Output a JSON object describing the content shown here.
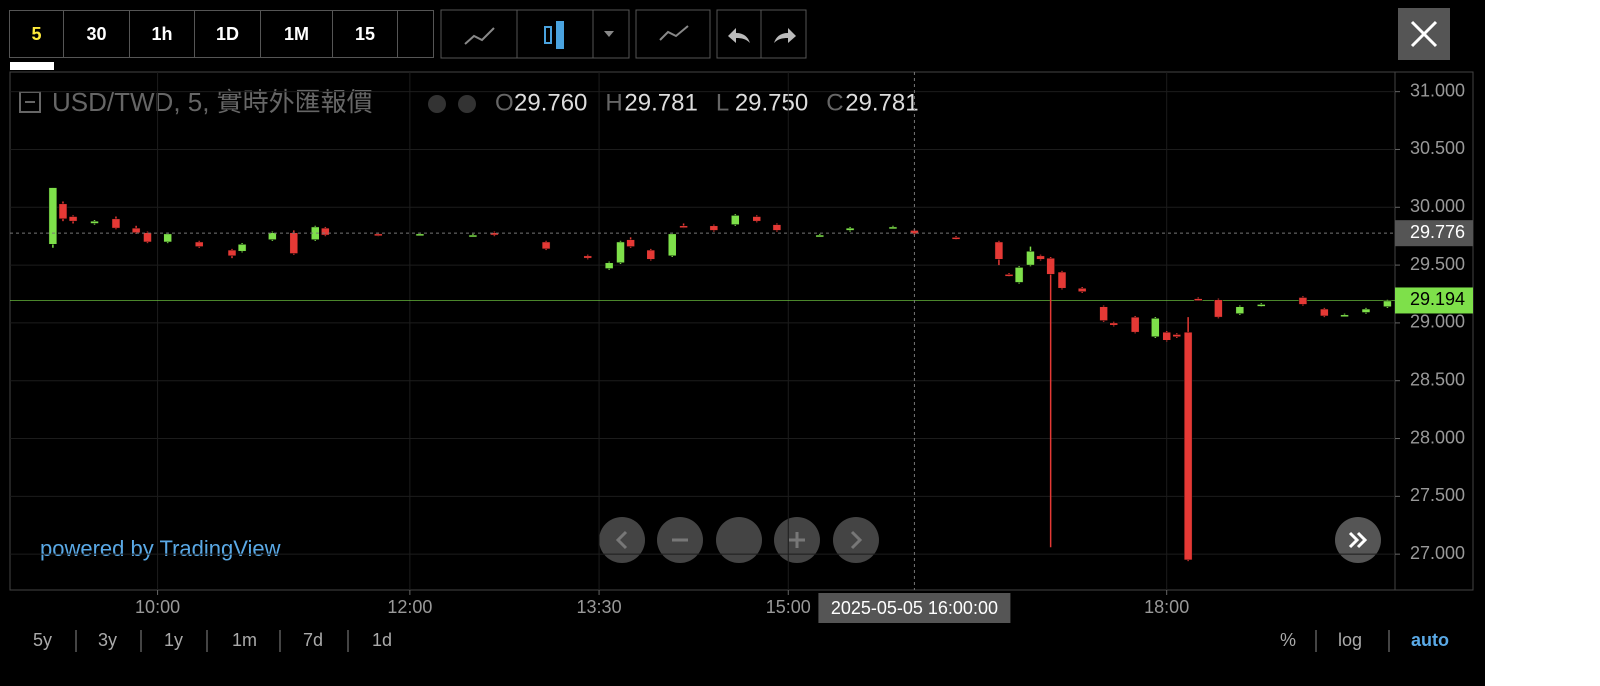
{
  "toolbar": {
    "intervals": [
      "5",
      "30",
      "1h",
      "1D",
      "1M",
      "15"
    ]
  },
  "chart_data": {
    "type": "candlestick",
    "title": "USD/TWD, 5, 實時外匯報價",
    "legend": [
      {
        "key": "O",
        "value": "29.760"
      },
      {
        "key": "H",
        "value": "29.781"
      },
      {
        "key": "L",
        "value": "29.750"
      },
      {
        "key": "C",
        "value": "29.781"
      }
    ],
    "x": [
      9.17,
      9.25,
      9.33,
      9.5,
      9.67,
      9.83,
      9.92,
      10.08,
      10.33,
      10.59,
      10.67,
      10.91,
      11.08,
      11.25,
      11.33,
      11.75,
      12.08,
      12.5,
      12.67,
      13.08,
      13.41,
      13.58,
      13.67,
      13.75,
      13.91,
      14.08,
      14.17,
      14.41,
      14.58,
      14.75,
      14.91,
      15.25,
      15.49,
      15.83,
      16.0,
      16.33,
      16.67,
      16.75,
      16.83,
      16.92,
      17.0,
      17.08,
      17.17,
      17.33,
      17.5,
      17.58,
      17.75,
      17.91,
      18.0,
      18.08,
      18.17,
      18.25,
      18.41,
      18.58,
      18.75,
      19.08,
      19.25,
      19.41,
      19.58,
      19.75
    ],
    "open": [
      29.68,
      30.03,
      29.92,
      29.86,
      29.9,
      29.82,
      29.78,
      29.7,
      29.7,
      29.63,
      29.62,
      29.72,
      29.78,
      29.72,
      29.82,
      29.77,
      29.77,
      29.76,
      29.78,
      29.7,
      29.58,
      29.47,
      29.52,
      29.72,
      29.63,
      29.58,
      29.84,
      29.84,
      29.85,
      29.92,
      29.85,
      29.76,
      29.8,
      29.83,
      29.8,
      29.74,
      29.7,
      29.42,
      29.35,
      29.5,
      29.58,
      29.56,
      29.44,
      29.3,
      29.14,
      29.0,
      29.05,
      28.88,
      28.92,
      28.9,
      28.92,
      29.21,
      29.2,
      29.08,
      29.15,
      29.22,
      29.12,
      29.07,
      29.09,
      29.14
    ],
    "high": [
      30.17,
      30.05,
      29.93,
      29.89,
      29.92,
      29.84,
      29.79,
      29.78,
      29.71,
      29.64,
      29.69,
      29.79,
      29.8,
      29.84,
      29.83,
      29.78,
      29.78,
      29.77,
      29.79,
      29.71,
      29.59,
      29.53,
      29.71,
      29.74,
      29.64,
      29.78,
      29.86,
      29.85,
      29.94,
      29.93,
      29.86,
      29.77,
      29.83,
      29.84,
      29.81,
      29.75,
      29.71,
      29.43,
      29.49,
      29.66,
      29.59,
      29.57,
      29.45,
      29.31,
      29.15,
      29.01,
      29.06,
      29.05,
      28.93,
      28.91,
      29.05,
      29.22,
      29.21,
      29.15,
      29.17,
      29.23,
      29.13,
      29.08,
      29.13,
      29.2
    ],
    "low": [
      29.65,
      29.88,
      29.86,
      29.85,
      29.81,
      29.77,
      29.69,
      29.69,
      29.65,
      29.56,
      29.61,
      29.71,
      29.59,
      29.71,
      29.75,
      29.75,
      29.76,
      29.75,
      29.75,
      29.63,
      29.55,
      29.46,
      29.51,
      29.65,
      29.54,
      29.57,
      29.82,
      29.79,
      29.84,
      29.87,
      29.79,
      29.75,
      29.79,
      29.82,
      29.76,
      29.72,
      29.5,
      29.4,
      29.34,
      29.49,
      29.54,
      27.06,
      29.29,
      29.26,
      29.01,
      28.97,
      28.91,
      28.87,
      28.84,
      28.87,
      26.94,
      29.19,
      29.04,
      29.07,
      29.14,
      29.15,
      29.05,
      29.06,
      29.08,
      29.13
    ],
    "close": [
      30.17,
      29.9,
      29.88,
      29.88,
      29.82,
      29.78,
      29.7,
      29.77,
      29.66,
      29.58,
      29.68,
      29.78,
      29.6,
      29.83,
      29.76,
      29.76,
      29.77,
      29.76,
      29.76,
      29.64,
      29.56,
      29.52,
      29.7,
      29.66,
      29.55,
      29.77,
      29.83,
      29.8,
      29.93,
      29.88,
      29.8,
      29.76,
      29.82,
      29.83,
      29.77,
      29.73,
      29.55,
      29.41,
      29.48,
      29.62,
      29.55,
      29.42,
      29.3,
      29.27,
      29.02,
      28.98,
      28.92,
      29.04,
      28.85,
      28.88,
      26.95,
      29.2,
      29.05,
      29.14,
      29.16,
      29.16,
      29.06,
      29.07,
      29.12,
      29.19
    ],
    "up_color": "#7ee04a",
    "down_color": "#e53935",
    "xlim": [
      8.83,
      19.81
    ],
    "xticks": [
      {
        "value": 10,
        "label": "10:00"
      },
      {
        "value": 12,
        "label": "12:00"
      },
      {
        "value": 13.5,
        "label": "13:30"
      },
      {
        "value": 15,
        "label": "15:00"
      },
      {
        "value": 18,
        "label": "18:00"
      }
    ],
    "ylim": [
      26.69,
      31.17
    ],
    "yticks": [
      {
        "value": 27,
        "label": "27.000"
      },
      {
        "value": 27.5,
        "label": "27.500"
      },
      {
        "value": 28,
        "label": "28.000"
      },
      {
        "value": 28.5,
        "label": "28.500"
      },
      {
        "value": 29,
        "label": "29.000"
      },
      {
        "value": 29.5,
        "label": "29.500"
      },
      {
        "value": 30,
        "label": "30.000"
      },
      {
        "value": 30.5,
        "label": "30.500"
      },
      {
        "value": 31,
        "label": "31.000"
      }
    ],
    "grid": true,
    "last_price": 29.194,
    "crosshair": {
      "x": 16,
      "x_label": "2025-05-05 16:00:00",
      "y": 29.776
    }
  },
  "watermark": "powered by TradingView",
  "bottom_bar": {
    "ranges": [
      "5y",
      "3y",
      "1y",
      "1m",
      "7d",
      "1d"
    ],
    "options": [
      "%",
      "log",
      "auto"
    ]
  }
}
